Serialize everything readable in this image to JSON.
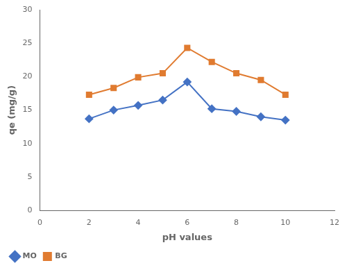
{
  "chart_data": {
    "type": "line",
    "x": [
      2,
      3,
      4,
      5,
      6,
      7,
      8,
      9,
      10
    ],
    "series": [
      {
        "name": "MO",
        "color": "#4472C4",
        "marker": "diamond",
        "values": [
          13.7,
          15.0,
          15.7,
          16.5,
          19.2,
          15.2,
          14.8,
          14.0,
          13.5
        ]
      },
      {
        "name": "BG",
        "color": "#E07B30",
        "marker": "square",
        "values": [
          17.3,
          18.3,
          19.9,
          20.5,
          24.3,
          22.2,
          20.5,
          19.5,
          17.3
        ]
      }
    ],
    "xlabel": "pH values",
    "ylabel": "qe (mg/g)",
    "xlim": [
      0,
      12
    ],
    "xticks": [
      0,
      2,
      4,
      6,
      8,
      10,
      12
    ],
    "ylim": [
      0,
      30
    ],
    "yticks": [
      0,
      5,
      10,
      15,
      20,
      25,
      30
    ],
    "grid": false,
    "legend": "lower left"
  }
}
